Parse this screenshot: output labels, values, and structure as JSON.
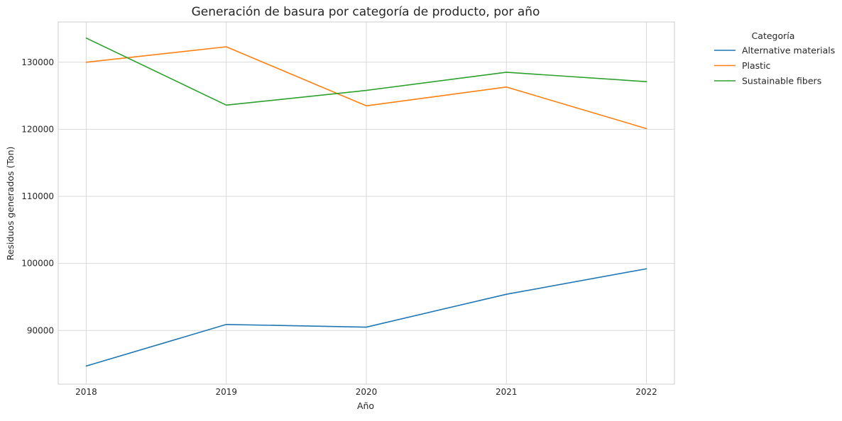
{
  "chart_data": {
    "type": "line",
    "title": "Generación de basura por categoría de producto, por año",
    "xlabel": "Año",
    "ylabel": "Residuos generados (Ton)",
    "x": [
      2018,
      2019,
      2020,
      2021,
      2022
    ],
    "x_tick_labels": [
      "2018",
      "2019",
      "2020",
      "2021",
      "2022"
    ],
    "y_ticks": [
      90000,
      100000,
      110000,
      120000,
      130000
    ],
    "y_tick_labels": [
      "90000",
      "100000",
      "110000",
      "120000",
      "130000"
    ],
    "xlim": [
      2017.8,
      2022.2
    ],
    "ylim": [
      82000,
      136000
    ],
    "grid": true,
    "legend": {
      "title": "Categoría",
      "placement": "outside-right"
    },
    "series": [
      {
        "name": "Alternative materials",
        "color": "#1f77b4",
        "values": [
          84700,
          90900,
          90500,
          95400,
          99200
        ]
      },
      {
        "name": "Plastic",
        "color": "#ff7f0e",
        "values": [
          130000,
          132300,
          123500,
          126300,
          120100
        ]
      },
      {
        "name": "Sustainable fibers",
        "color": "#2ca02c",
        "values": [
          133600,
          123600,
          125800,
          128500,
          127100
        ]
      }
    ]
  }
}
